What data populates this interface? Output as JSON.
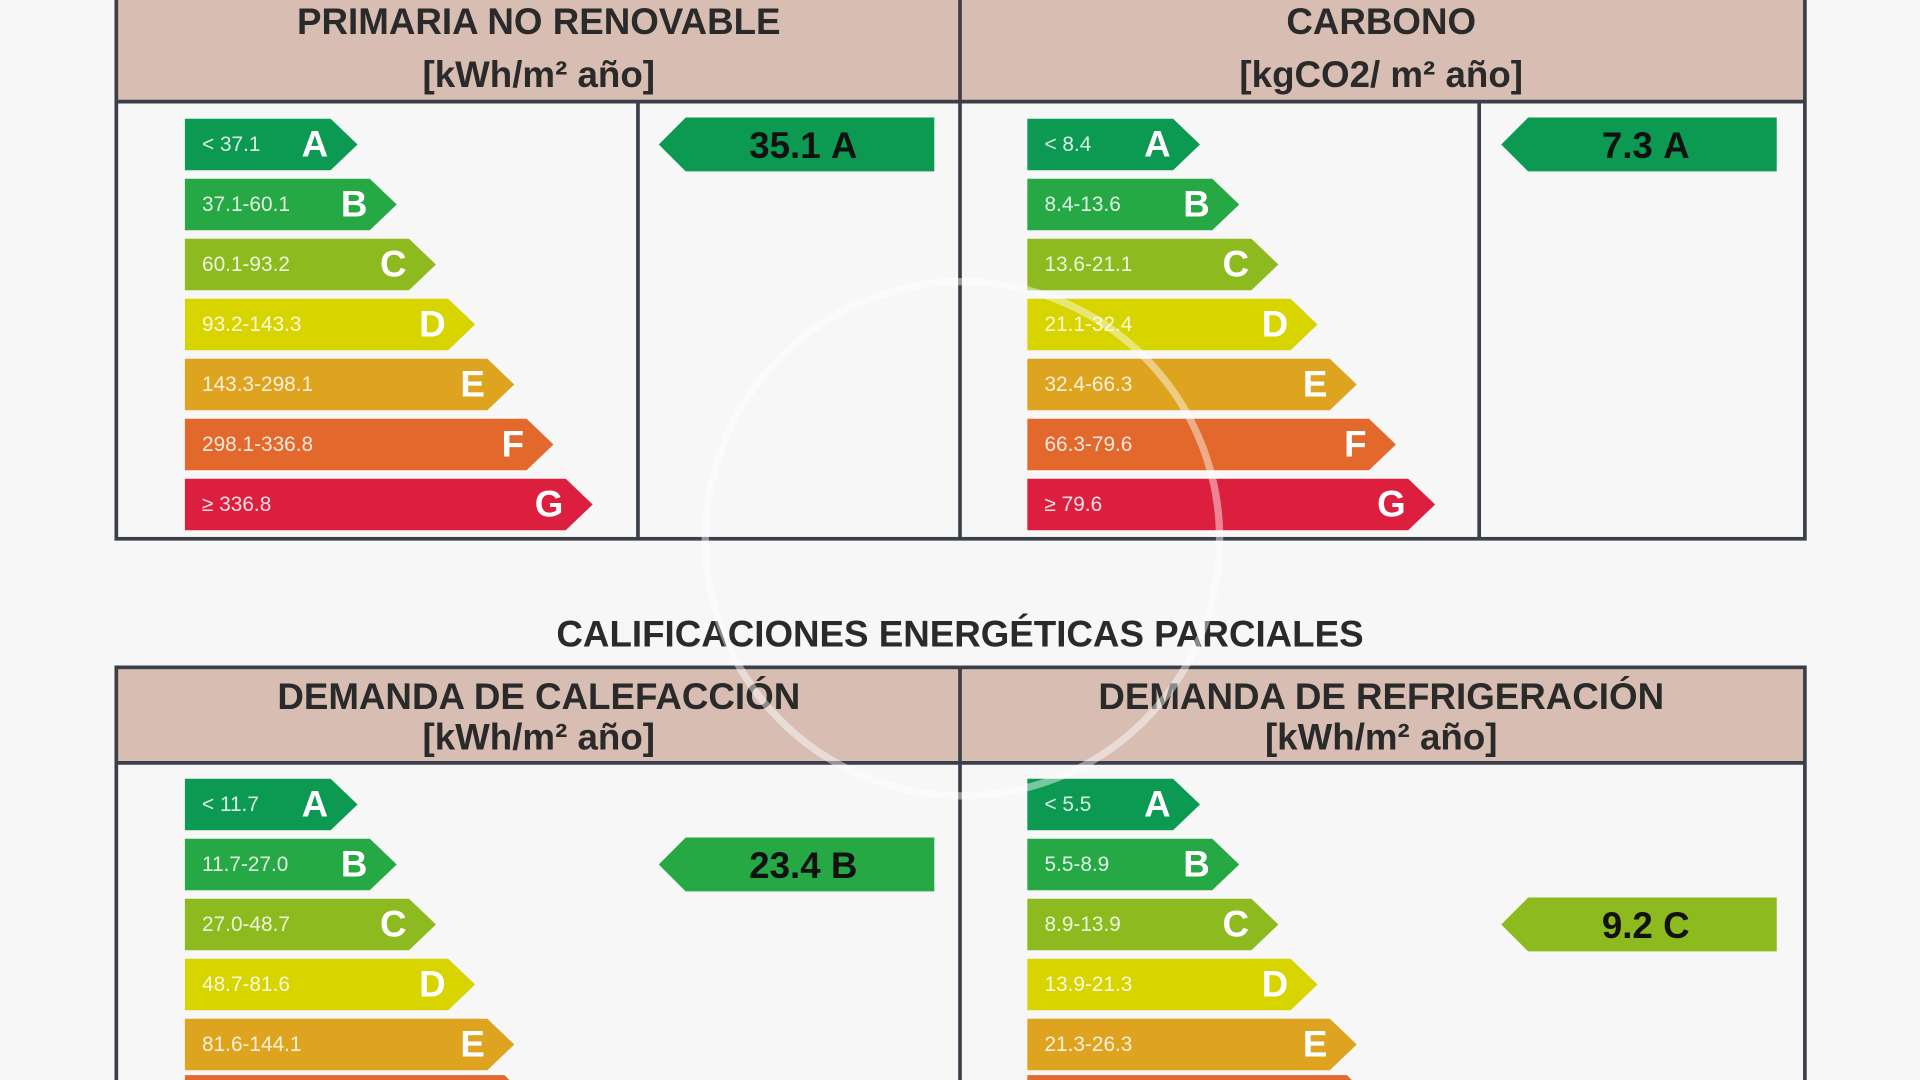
{
  "panels": [
    {
      "title": "PRIMARIA NO RENOVABLE",
      "unit": "[kWh/m² año]",
      "rows": [
        {
          "range": "< 37.1",
          "letter": "A",
          "color": "#0c9a52"
        },
        {
          "range": "37.1-60.1",
          "letter": "B",
          "color": "#26a845"
        },
        {
          "range": "60.1-93.2",
          "letter": "C",
          "color": "#8cba1f"
        },
        {
          "range": "93.2-143.3",
          "letter": "D",
          "color": "#d8d400"
        },
        {
          "range": "143.3-298.1",
          "letter": "E",
          "color": "#dea420"
        },
        {
          "range": "298.1-336.8",
          "letter": "F",
          "color": "#e2682b"
        },
        {
          "range": "≥ 336.8",
          "letter": "G",
          "color": "#dc1f3e"
        }
      ],
      "rating": {
        "value": 35.1,
        "letter": "A"
      }
    },
    {
      "title": "CARBONO",
      "unit": "[kgCO2/ m² año]",
      "rows": [
        {
          "range": "< 8.4",
          "letter": "A",
          "color": "#0c9a52"
        },
        {
          "range": "8.4-13.6",
          "letter": "B",
          "color": "#26a845"
        },
        {
          "range": "13.6-21.1",
          "letter": "C",
          "color": "#8cba1f"
        },
        {
          "range": "21.1-32.4",
          "letter": "D",
          "color": "#d8d400"
        },
        {
          "range": "32.4-66.3",
          "letter": "E",
          "color": "#dea420"
        },
        {
          "range": "66.3-79.6",
          "letter": "F",
          "color": "#e2682b"
        },
        {
          "range": "≥ 79.6",
          "letter": "G",
          "color": "#dc1f3e"
        }
      ],
      "rating": {
        "value": 7.3,
        "letter": "A"
      }
    },
    {
      "title": "DEMANDA DE CALEFACCIÓN",
      "unit": "[kWh/m² año]",
      "rows": [
        {
          "range": "< 11.7",
          "letter": "A",
          "color": "#0c9a52"
        },
        {
          "range": "11.7-27.0",
          "letter": "B",
          "color": "#26a845"
        },
        {
          "range": "27.0-48.7",
          "letter": "C",
          "color": "#8cba1f"
        },
        {
          "range": "48.7-81.6",
          "letter": "D",
          "color": "#d8d400"
        },
        {
          "range": "81.6-144.1",
          "letter": "E",
          "color": "#dea420"
        }
      ],
      "rating": {
        "value": 23.4,
        "letter": "B"
      }
    },
    {
      "title": "DEMANDA DE REFRIGERACIÓN",
      "unit": "[kWh/m² año]",
      "rows": [
        {
          "range": "< 5.5",
          "letter": "A",
          "color": "#0c9a52"
        },
        {
          "range": "5.5-8.9",
          "letter": "B",
          "color": "#26a845"
        },
        {
          "range": "8.9-13.9",
          "letter": "C",
          "color": "#8cba1f"
        },
        {
          "range": "13.9-21.3",
          "letter": "D",
          "color": "#d8d400"
        },
        {
          "range": "21.3-26.3",
          "letter": "E",
          "color": "#dea420"
        }
      ],
      "rating": {
        "value": 9.2,
        "letter": "C"
      }
    }
  ],
  "section_title": "CALIFICACIONES ENERGÉTICAS PARCIALES"
}
